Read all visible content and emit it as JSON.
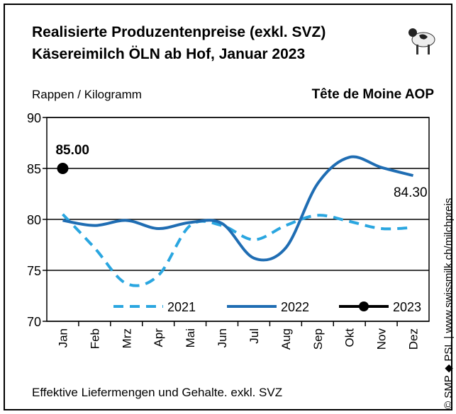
{
  "chart_data": {
    "type": "line",
    "title": "Realisierte Produzentenpreise (exkl. SVZ)",
    "subtitle": "Käsereimilch ÖLN ab Hof, Januar 2023",
    "y_label": "Rappen / Kilogramm",
    "product": "Tête de Moine AOP",
    "footnote": "Effektive Liefermengen und Gehalte. exkl. SVZ",
    "source": "© SMP ◆ PSL | www.swissmilk.ch/milchpreis",
    "categories": [
      "Jan",
      "Feb",
      "Mrz",
      "Apr",
      "Mai",
      "Jun",
      "Jul",
      "Aug",
      "Sep",
      "Okt",
      "Nov",
      "Dez"
    ],
    "ylim": [
      70,
      90
    ],
    "yticks": [
      70,
      75,
      80,
      85,
      90
    ],
    "grid": true,
    "legend": "bottom",
    "series": [
      {
        "name": "2021",
        "color": "#2aa6e0",
        "line_style": "dashed",
        "values": [
          80.5,
          77.2,
          73.7,
          74.5,
          79.4,
          79.4,
          78.0,
          79.4,
          80.4,
          79.8,
          79.1,
          79.2
        ]
      },
      {
        "name": "2022",
        "color": "#1f6db3",
        "line_style": "solid",
        "values": [
          79.9,
          79.4,
          79.9,
          79.1,
          79.7,
          79.6,
          76.2,
          77.2,
          83.5,
          86.1,
          85.1,
          84.3
        ],
        "value_labels": [
          null,
          null,
          null,
          null,
          null,
          null,
          null,
          null,
          null,
          null,
          null,
          "84.30"
        ]
      },
      {
        "name": "2023",
        "color": "#000000",
        "line_style": "solid",
        "marker": "circle",
        "values": [
          85.0,
          null,
          null,
          null,
          null,
          null,
          null,
          null,
          null,
          null,
          null,
          null
        ],
        "value_labels": [
          "85.00",
          null,
          null,
          null,
          null,
          null,
          null,
          null,
          null,
          null,
          null,
          null
        ]
      }
    ]
  }
}
